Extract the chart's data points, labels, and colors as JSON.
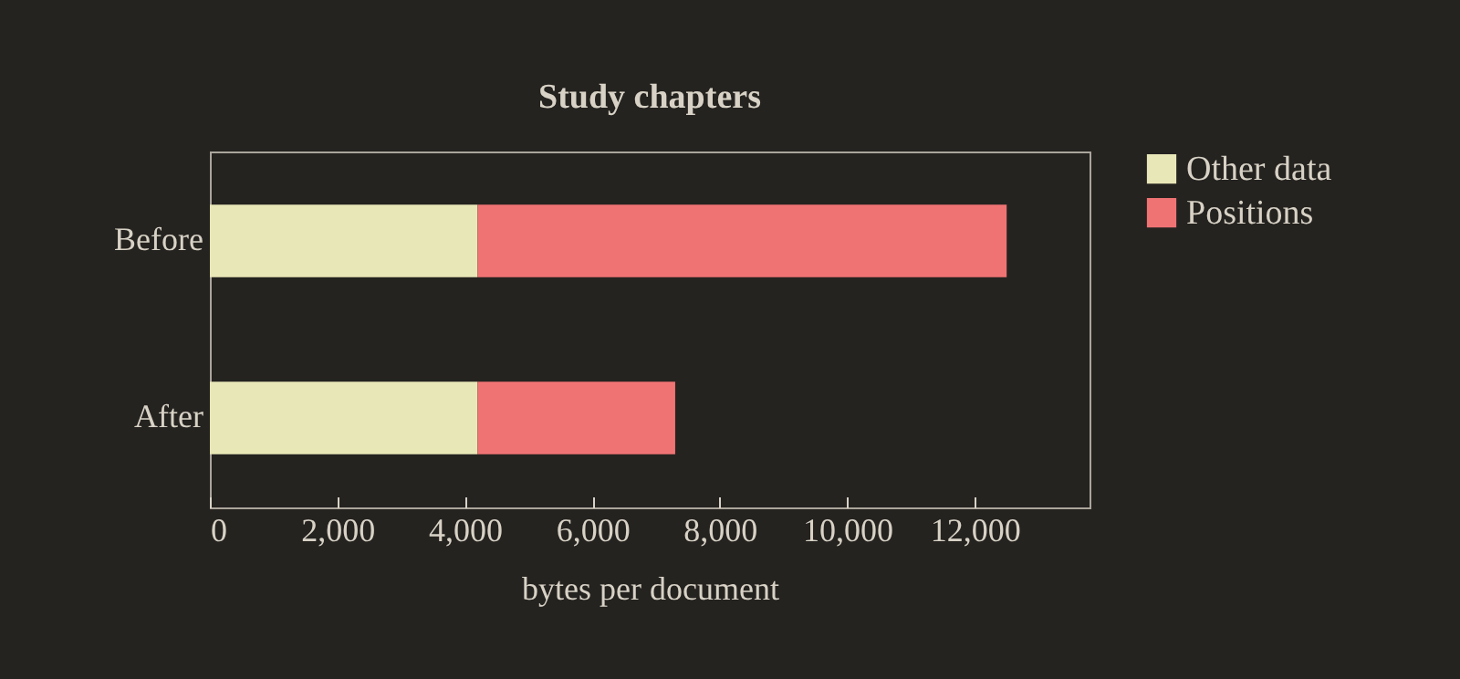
{
  "chart_data": {
    "type": "bar",
    "orientation": "horizontal",
    "stacked": true,
    "title": "Study chapters",
    "xlabel": "bytes per document",
    "categories": [
      "Before",
      "After"
    ],
    "series": [
      {
        "name": "Other data",
        "color": "#e8e7b7",
        "values": [
          4200,
          4200
        ]
      },
      {
        "name": "Positions",
        "color": "#f07373",
        "values": [
          8300,
          3100
        ]
      }
    ],
    "xlim": [
      0,
      13800
    ],
    "xticks": [
      {
        "value": 0,
        "label": "0"
      },
      {
        "value": 2000,
        "label": "2,000"
      },
      {
        "value": 4000,
        "label": "4,000"
      },
      {
        "value": 6000,
        "label": "6,000"
      },
      {
        "value": 8000,
        "label": "8,000"
      },
      {
        "value": 10000,
        "label": "10,000"
      },
      {
        "value": 12000,
        "label": "12,000"
      }
    ],
    "legend": "right"
  }
}
